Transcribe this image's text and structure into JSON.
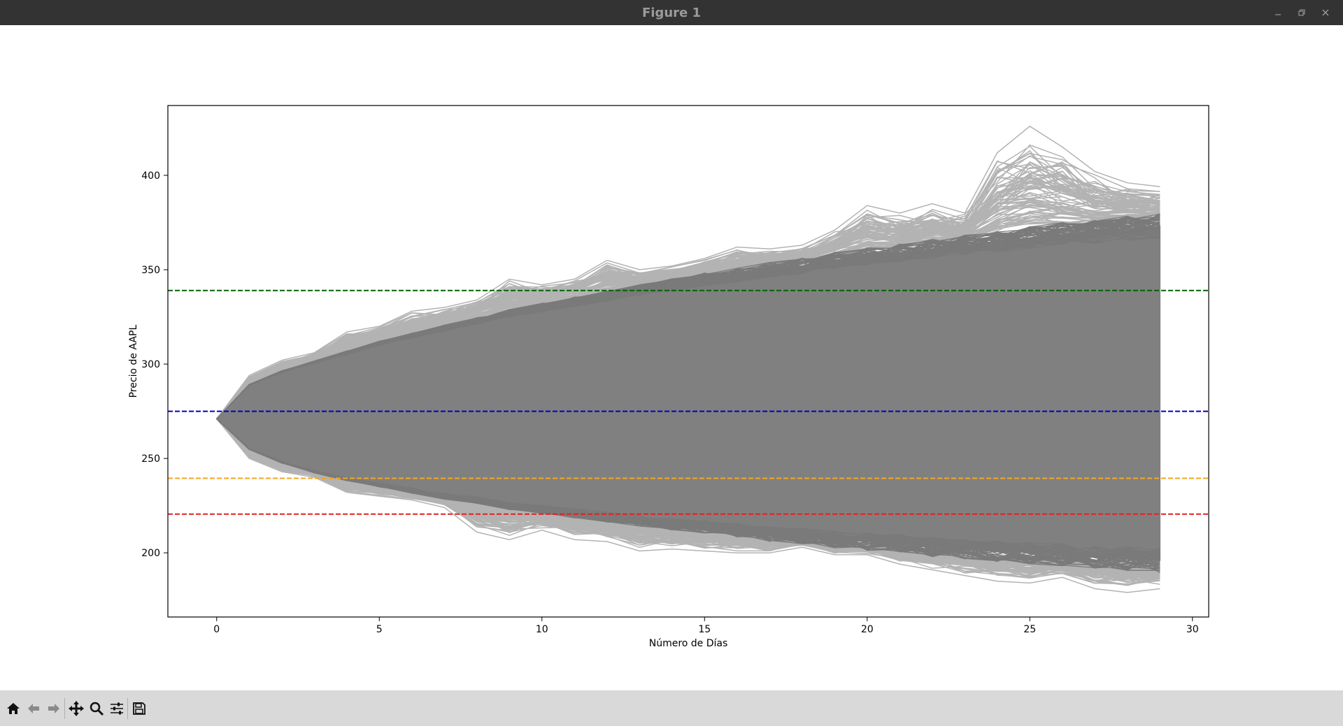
{
  "window": {
    "title": "Figure 1",
    "controls": [
      "minimize-icon",
      "restore-icon",
      "close-icon"
    ]
  },
  "toolbar": {
    "buttons": [
      "home-icon",
      "back-icon",
      "forward-icon",
      "pan-icon",
      "zoom-icon",
      "configure-subplots-icon",
      "save-icon"
    ]
  },
  "colors": {
    "paths": "#808080",
    "paths_outer": "#b3b3b3",
    "green_line": "#006400",
    "blue_line": "#0000cd",
    "orange_line": "#f5a623",
    "red_line": "#e32020"
  },
  "chart_data": {
    "type": "line",
    "title": "",
    "xlabel": "Número de Días",
    "ylabel": "Precio de AAPL",
    "xlim": [
      -1.5,
      30.5
    ],
    "ylim": [
      166,
      437
    ],
    "xticks": [
      0,
      5,
      10,
      15,
      20,
      25,
      30
    ],
    "yticks": [
      200,
      250,
      300,
      350,
      400
    ],
    "grid": false,
    "legend": "none",
    "simulation": {
      "start_price": 271,
      "days": 29,
      "upper_envelope": [
        271,
        289,
        296,
        301,
        306,
        311,
        315,
        319,
        323,
        327,
        330,
        333,
        336,
        339,
        342,
        345,
        347,
        350,
        352,
        355,
        357,
        359,
        361,
        363,
        365,
        367,
        369,
        370,
        372,
        373
      ],
      "lower_envelope": [
        271,
        255,
        248,
        243,
        239,
        236,
        233,
        230,
        228,
        225,
        223,
        221,
        219,
        217,
        215,
        214,
        212,
        210,
        209,
        207,
        206,
        205,
        203,
        202,
        201,
        200,
        199,
        198,
        197,
        196
      ],
      "outlier_upper": [
        271,
        294,
        302,
        306,
        317,
        320,
        328,
        330,
        334,
        345,
        342,
        345,
        355,
        350,
        352,
        356,
        362,
        361,
        363,
        371,
        384,
        380,
        385,
        380,
        412,
        426,
        415,
        402,
        396,
        394
      ],
      "outlier_lower": [
        271,
        250,
        243,
        240,
        232,
        230,
        228,
        224,
        211,
        207,
        212,
        207,
        206,
        201,
        202,
        201,
        200,
        200,
        203,
        199,
        199,
        194,
        191,
        188,
        185,
        184,
        187,
        181,
        179,
        181
      ]
    },
    "hlines": [
      {
        "y": 339,
        "color": "#006400",
        "style": "dashed"
      },
      {
        "y": 275,
        "color": "#0000cd",
        "style": "dashed"
      },
      {
        "y": 239.5,
        "color": "#f5a623",
        "style": "dashed"
      },
      {
        "y": 220.5,
        "color": "#e32020",
        "style": "dashed"
      }
    ]
  }
}
